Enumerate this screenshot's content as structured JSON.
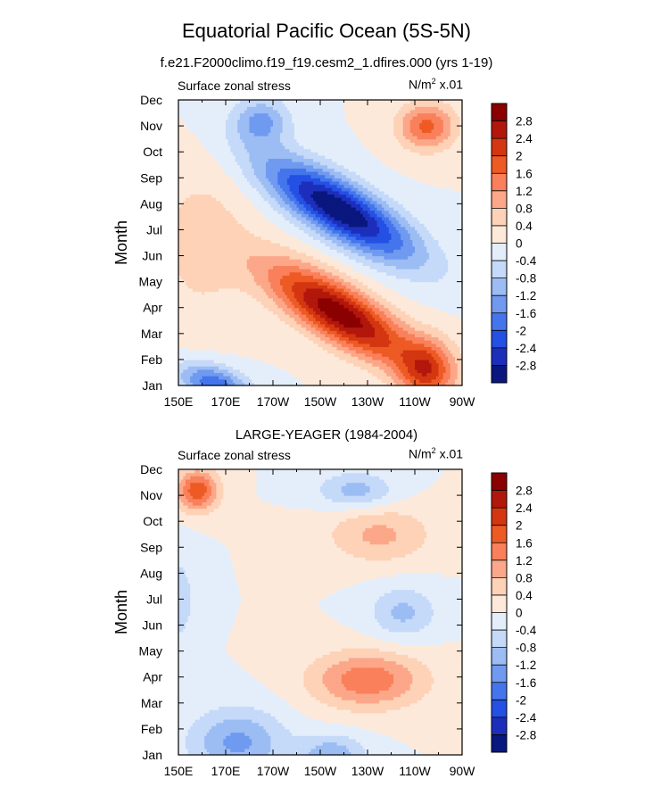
{
  "title": "Equatorial Pacific Ocean (5S-5N)",
  "top_panel_title": "f.e21.F2000climo.f19_f19.cesm2_1.dfires.000 (yrs 1-19)",
  "bottom_panel_title": "LARGE-YEAGER (1984-2004)",
  "chart_data": [
    {
      "type": "heatmap",
      "name": "model",
      "title": "f.e21.F2000climo.f19_f19.cesm2_1.dfires.000 (yrs 1-19)",
      "left_label": "Surface zonal stress",
      "right_label": {
        "units": "N/m",
        "power": "2",
        "scale": " x.01"
      },
      "ylabel": "Month",
      "x_ticks": [
        "150E",
        "170E",
        "170W",
        "150W",
        "130W",
        "110W",
        "90W"
      ],
      "x_range_lon": [
        150,
        270
      ],
      "y_ticks": [
        "Jan",
        "Feb",
        "Mar",
        "Apr",
        "May",
        "Jun",
        "Jul",
        "Aug",
        "Sep",
        "Oct",
        "Nov",
        "Dec"
      ],
      "contour_levels": [
        -2.8,
        -2.4,
        -2,
        -1.6,
        -1.2,
        -0.8,
        -0.4,
        0,
        0.4,
        0.8,
        1.2,
        1.6,
        2,
        2.4,
        2.8
      ],
      "features": [
        {
          "lon": 218,
          "month": 7.8,
          "value": -3.2,
          "spread_lon": 32,
          "spread_month": 1.2,
          "tilt": 0.048
        },
        {
          "lon": 218,
          "month": 3.8,
          "value": 3.1,
          "spread_lon": 30,
          "spread_month": 1.2,
          "tilt": 0.048
        },
        {
          "lon": 165,
          "month": 1.1,
          "value": -1.9,
          "spread_lon": 15,
          "spread_month": 0.7,
          "tilt": 0.02
        },
        {
          "lon": 255,
          "month": 1.6,
          "value": 1.9,
          "spread_lon": 12,
          "spread_month": 1.2,
          "tilt": 0.0
        },
        {
          "lon": 255,
          "month": 11.0,
          "value": 1.7,
          "spread_lon": 12,
          "spread_month": 0.9,
          "tilt": 0.0
        },
        {
          "lon": 185,
          "month": 11.2,
          "value": -1.3,
          "spread_lon": 12,
          "spread_month": 0.9,
          "tilt": 0.0
        },
        {
          "lon": 160,
          "month": 6.5,
          "value": 0.6,
          "spread_lon": 20,
          "spread_month": 3.0,
          "tilt": 0.0
        }
      ]
    },
    {
      "type": "heatmap",
      "name": "observations",
      "title": "LARGE-YEAGER (1984-2004)",
      "left_label": "Surface zonal stress",
      "right_label": {
        "units": "N/m",
        "power": "2",
        "scale": " x.01"
      },
      "ylabel": "Month",
      "x_ticks": [
        "150E",
        "170E",
        "170W",
        "150W",
        "130W",
        "110W",
        "90W"
      ],
      "x_range_lon": [
        150,
        270
      ],
      "y_ticks": [
        "Jan",
        "Feb",
        "Mar",
        "Apr",
        "May",
        "Jun",
        "Jul",
        "Aug",
        "Sep",
        "Oct",
        "Nov",
        "Dec"
      ],
      "contour_levels": [
        -2.8,
        -2.4,
        -2,
        -1.6,
        -1.2,
        -0.8,
        -0.4,
        0,
        0.4,
        0.8,
        1.2,
        1.6,
        2,
        2.4,
        2.8
      ],
      "features": [
        {
          "lon": 230,
          "month": 3.9,
          "value": 1.5,
          "spread_lon": 24,
          "spread_month": 1.1,
          "tilt": 0.0
        },
        {
          "lon": 158,
          "month": 11.2,
          "value": 1.9,
          "spread_lon": 9,
          "spread_month": 0.8,
          "tilt": 0.0
        },
        {
          "lon": 235,
          "month": 9.5,
          "value": 0.9,
          "spread_lon": 22,
          "spread_month": 1.1,
          "tilt": 0.0
        },
        {
          "lon": 175,
          "month": 1.5,
          "value": -1.3,
          "spread_lon": 20,
          "spread_month": 1.3,
          "tilt": 0.0
        },
        {
          "lon": 245,
          "month": 6.5,
          "value": -0.9,
          "spread_lon": 14,
          "spread_month": 1.0,
          "tilt": 0.0
        },
        {
          "lon": 225,
          "month": 11.2,
          "value": -1.0,
          "spread_lon": 16,
          "spread_month": 0.7,
          "tilt": 0.0
        },
        {
          "lon": 215,
          "month": 1.0,
          "value": -1.1,
          "spread_lon": 14,
          "spread_month": 0.8,
          "tilt": 0.0
        },
        {
          "lon": 150,
          "month": 7.0,
          "value": -0.6,
          "spread_lon": 8,
          "spread_month": 2.0,
          "tilt": 0.0
        }
      ]
    }
  ],
  "colorbar": {
    "labels": [
      "2.8",
      "2.4",
      "2",
      "1.6",
      "1.2",
      "0.8",
      "0.4",
      "0",
      "-0.4",
      "-0.8",
      "-1.2",
      "-1.6",
      "-2",
      "-2.4",
      "-2.8"
    ],
    "colors": [
      "#8b0000",
      "#b2170c",
      "#d33610",
      "#ee5a24",
      "#f9805a",
      "#fca789",
      "#fdd2b7",
      "#fde9da",
      "#e4eefb",
      "#c5d9f9",
      "#9cbcf4",
      "#6f9af0",
      "#4475ec",
      "#2450e4",
      "#1c2fbb",
      "#09177e"
    ]
  }
}
